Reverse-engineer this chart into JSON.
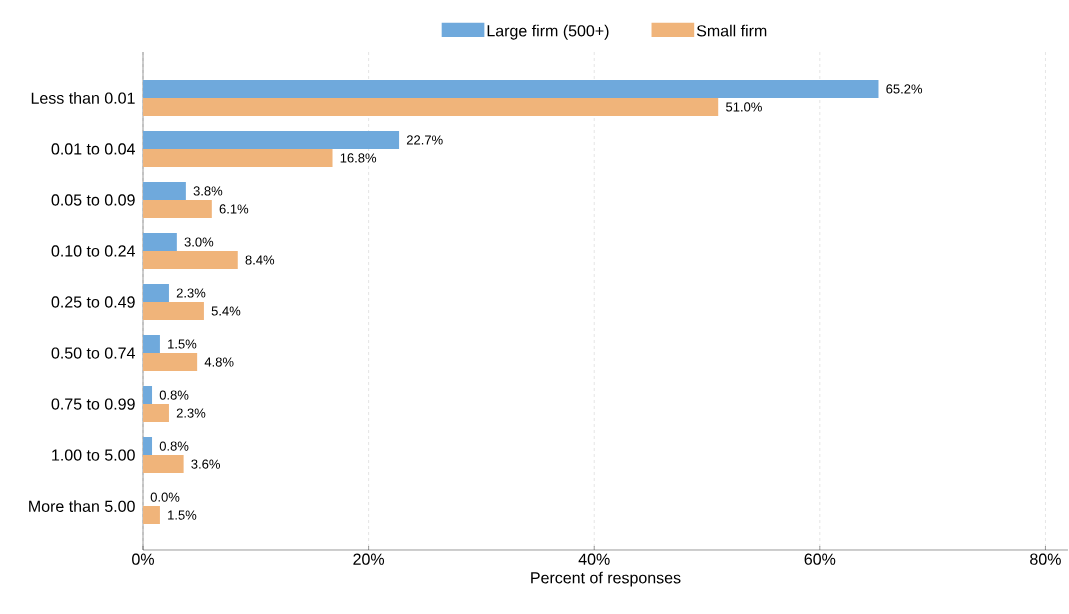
{
  "chart_data": {
    "type": "bar",
    "orientation": "horizontal",
    "xlabel": "Percent of responses",
    "categories": [
      "Less than 0.01",
      "0.01 to 0.04",
      "0.05 to 0.09",
      "0.10 to 0.24",
      "0.25 to 0.49",
      "0.50 to 0.74",
      "0.75 to 0.99",
      "1.00 to 5.00",
      "More than 5.00"
    ],
    "series": [
      {
        "name": "Large firm (500+)",
        "color": "#6fa9dc",
        "values": [
          65.2,
          22.7,
          3.8,
          3.0,
          2.3,
          1.5,
          0.8,
          0.8,
          0.0
        ],
        "value_labels": [
          "65.2%",
          "22.7%",
          "3.8%",
          "3.0%",
          "2.3%",
          "1.5%",
          "0.8%",
          "0.8%",
          "0.0%"
        ]
      },
      {
        "name": "Small firm",
        "color": "#f0b47a",
        "values": [
          51.0,
          16.8,
          6.1,
          8.4,
          5.4,
          4.8,
          2.3,
          3.6,
          1.5
        ],
        "value_labels": [
          "51.0%",
          "16.8%",
          "6.1%",
          "8.4%",
          "5.4%",
          "4.8%",
          "2.3%",
          "3.6%",
          "1.5%"
        ]
      }
    ],
    "xlim": [
      0,
      82
    ],
    "xticks": [
      {
        "value": 0,
        "label": "0%"
      },
      {
        "value": 20,
        "label": "20%"
      },
      {
        "value": 40,
        "label": "40%"
      },
      {
        "value": 60,
        "label": "60%"
      },
      {
        "value": 80,
        "label": "80%"
      }
    ],
    "grid": "x",
    "legend": "top"
  }
}
